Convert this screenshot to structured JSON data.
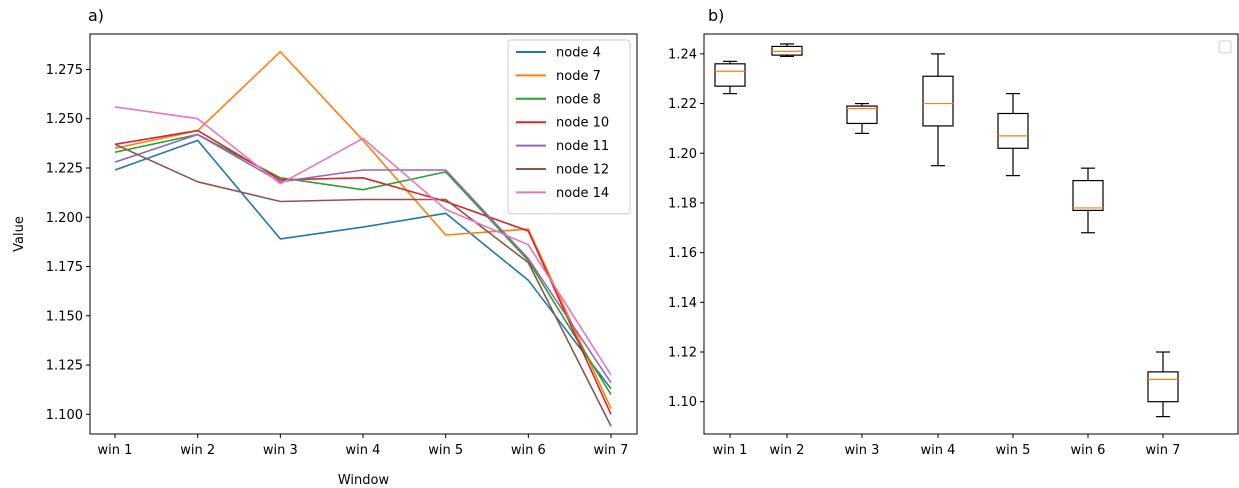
{
  "chart_data": [
    {
      "type": "line",
      "panel_label": "a)",
      "title": "",
      "xlabel": "Window",
      "ylabel": "Value",
      "categories": [
        "win 1",
        "win 2",
        "win 3",
        "win 4",
        "win 5",
        "win 6",
        "win 7"
      ],
      "ylim": [
        1.09,
        1.293
      ],
      "yticks": [
        "1.100",
        "1.125",
        "1.150",
        "1.175",
        "1.200",
        "1.225",
        "1.250",
        "1.275"
      ],
      "legend_position": "top-right",
      "grid": false,
      "series": [
        {
          "name": "node 4",
          "color": "#1f77b4",
          "values": [
            1.224,
            1.239,
            1.189,
            1.195,
            1.202,
            1.168,
            1.113
          ]
        },
        {
          "name": "node 7",
          "color": "#ff7f0e",
          "values": [
            1.235,
            1.244,
            1.284,
            1.239,
            1.191,
            1.194,
            1.103
          ]
        },
        {
          "name": "node 8",
          "color": "#2ca02c",
          "values": [
            1.233,
            1.242,
            1.22,
            1.214,
            1.223,
            1.178,
            1.11
          ]
        },
        {
          "name": "node 10",
          "color": "#d62728",
          "values": [
            1.237,
            1.244,
            1.219,
            1.22,
            1.208,
            1.193,
            1.1
          ]
        },
        {
          "name": "node 11",
          "color": "#9467bd",
          "values": [
            1.228,
            1.242,
            1.218,
            1.224,
            1.224,
            1.179,
            1.116
          ]
        },
        {
          "name": "node 12",
          "color": "#8c564b",
          "values": [
            1.237,
            1.218,
            1.208,
            1.209,
            1.209,
            1.177,
            1.094
          ]
        },
        {
          "name": "node 14",
          "color": "#e377c2",
          "values": [
            1.256,
            1.25,
            1.217,
            1.24,
            1.204,
            1.186,
            1.12
          ]
        }
      ]
    },
    {
      "type": "box",
      "panel_label": "b)",
      "title": "",
      "xlabel": "",
      "ylabel": "",
      "categories": [
        "win 1",
        "win 2",
        "win 3",
        "win 4",
        "win 5",
        "win 6",
        "win 7"
      ],
      "ylim": [
        1.087,
        1.248
      ],
      "yticks": [
        "1.10",
        "1.12",
        "1.14",
        "1.16",
        "1.18",
        "1.20",
        "1.22",
        "1.24"
      ],
      "box_color": "#000000",
      "median_color": "#ff7f0e",
      "boxes": [
        {
          "whislo": 1.224,
          "q1": 1.227,
          "med": 1.233,
          "q3": 1.236,
          "whishi": 1.237
        },
        {
          "whislo": 1.239,
          "q1": 1.2395,
          "med": 1.241,
          "q3": 1.243,
          "whishi": 1.244
        },
        {
          "whislo": 1.208,
          "q1": 1.212,
          "med": 1.218,
          "q3": 1.219,
          "whishi": 1.22
        },
        {
          "whislo": 1.195,
          "q1": 1.211,
          "med": 1.22,
          "q3": 1.231,
          "whishi": 1.24
        },
        {
          "whislo": 1.191,
          "q1": 1.202,
          "med": 1.207,
          "q3": 1.216,
          "whishi": 1.224
        },
        {
          "whislo": 1.168,
          "q1": 1.177,
          "med": 1.178,
          "q3": 1.189,
          "whishi": 1.194
        },
        {
          "whislo": 1.094,
          "q1": 1.1,
          "med": 1.109,
          "q3": 1.112,
          "whishi": 1.12
        }
      ]
    }
  ]
}
